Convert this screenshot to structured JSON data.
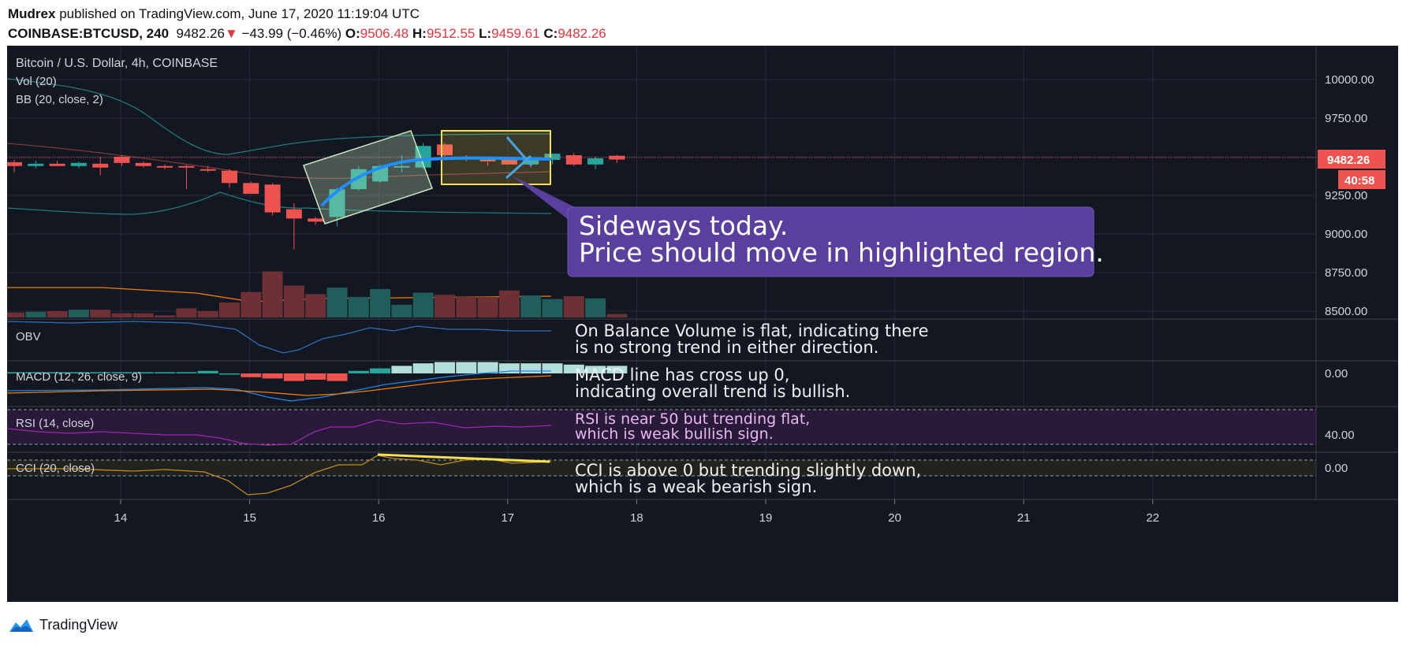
{
  "header": {
    "author": "Mudrex",
    "published_text": "published on TradingView.com, June 17, 2020 11:19:04 UTC",
    "symbol": "COINBASE:BTCUSD, 240",
    "last": "9482.26",
    "change_arrow": "▼",
    "change": "−43.99 (−0.46%)",
    "o_label": "O:",
    "o": "9506.48",
    "h_label": "H:",
    "h": "9512.55",
    "l_label": "L:",
    "l": "9459.61",
    "c_label": "C:",
    "c": "9482.26"
  },
  "footer": {
    "brand": "TradingView",
    "logo_icon": "tradingview-logo-icon"
  },
  "colors": {
    "background": "#131722",
    "up": "#26a69a",
    "down": "#ef5350",
    "callout": "#5a3f9e",
    "annotation_text": "#f0f0f0",
    "bb": "#1f7a78",
    "obv": "#2e6fb6",
    "macd_line": "#1e88e5",
    "signal_line": "#f57c00",
    "rsi": "#9c27b0",
    "cci": "#c08a1c",
    "highlight_yellow": "#f5e050"
  },
  "chart_data": {
    "type": "candlestick",
    "title": "Bitcoin / U.S. Dollar, 4h, COINBASE",
    "indicators": [
      "Vol (20)",
      "BB (20, close, 2)"
    ],
    "x_ticks": [
      "14",
      "15",
      "16",
      "17",
      "18",
      "19",
      "20",
      "21",
      "22"
    ],
    "y_ticks": [
      "10000.00",
      "9750.00",
      "9500.00",
      "9250.00",
      "9000.00",
      "8750.00",
      "8500.00"
    ],
    "ylim": [
      8500,
      10000
    ],
    "last_price": "9482.26",
    "countdown": "40:58",
    "candles": [
      [
        9465,
        9480,
        9400,
        9440
      ],
      [
        9440,
        9475,
        9425,
        9455
      ],
      [
        9455,
        9475,
        9440,
        9440
      ],
      [
        9440,
        9470,
        9425,
        9460
      ],
      [
        9455,
        9500,
        9380,
        9430
      ],
      [
        9500,
        9510,
        9440,
        9460
      ],
      [
        9460,
        9470,
        9430,
        9440
      ],
      [
        9440,
        9450,
        9420,
        9430
      ],
      [
        9440,
        9450,
        9290,
        9430
      ],
      [
        9420,
        9440,
        9400,
        9410
      ],
      [
        9410,
        9420,
        9300,
        9330
      ],
      [
        9330,
        9340,
        9270,
        9260
      ],
      [
        9320,
        9330,
        9120,
        9140
      ],
      [
        9160,
        9200,
        8900,
        9100
      ],
      [
        9100,
        9110,
        9060,
        9080
      ],
      [
        9110,
        9300,
        9050,
        9290
      ],
      [
        9290,
        9440,
        9280,
        9420
      ],
      [
        9340,
        9450,
        9330,
        9440
      ],
      [
        9440,
        9510,
        9400,
        9440
      ],
      [
        9430,
        9590,
        9420,
        9570
      ],
      [
        9580,
        9590,
        9500,
        9510
      ],
      [
        9500,
        9510,
        9470,
        9490
      ],
      [
        9490,
        9500,
        9440,
        9470
      ],
      [
        9480,
        9500,
        9450,
        9450
      ],
      [
        9450,
        9490,
        9430,
        9480
      ],
      [
        9480,
        9520,
        9450,
        9520
      ],
      [
        9510,
        9525,
        9440,
        9450
      ],
      [
        9450,
        9500,
        9420,
        9490
      ],
      [
        9506.48,
        9512.55,
        9459.61,
        9482.26
      ]
    ],
    "volume": [
      0.07,
      0.08,
      0.09,
      0.11,
      0.11,
      0.06,
      0.06,
      0.03,
      0.13,
      0.09,
      0.21,
      0.36,
      0.65,
      0.45,
      0.33,
      0.42,
      0.29,
      0.4,
      0.18,
      0.35,
      0.32,
      0.29,
      0.29,
      0.38,
      0.31,
      0.26,
      0.3,
      0.27,
      0.05
    ],
    "panes": [
      {
        "label": "OBV"
      },
      {
        "label": "MACD (12, 26, close, 9)",
        "y_ticks": [
          "0.00"
        ]
      },
      {
        "label": "RSI (14, close)",
        "y_ticks": [
          "40.00"
        ]
      },
      {
        "label": "CCI (20, close)",
        "y_ticks": [
          "0.00"
        ]
      }
    ]
  },
  "annotations": {
    "callout_line1": "Sideways today.",
    "callout_line2": "Price should move in highlighted region.",
    "obv_line1": "On Balance Volume is flat, indicating there",
    "obv_line2": "is no strong trend in either direction.",
    "macd_line1": "MACD line has cross up 0,",
    "macd_line2": "indicating overall trend is bullish.",
    "rsi_line1": "RSI is near 50 but trending flat,",
    "rsi_line2": "which is weak bullish sign.",
    "cci_line1": "CCI is above 0 but trending slightly down,",
    "cci_line2": "which is a weak bearish sign."
  }
}
